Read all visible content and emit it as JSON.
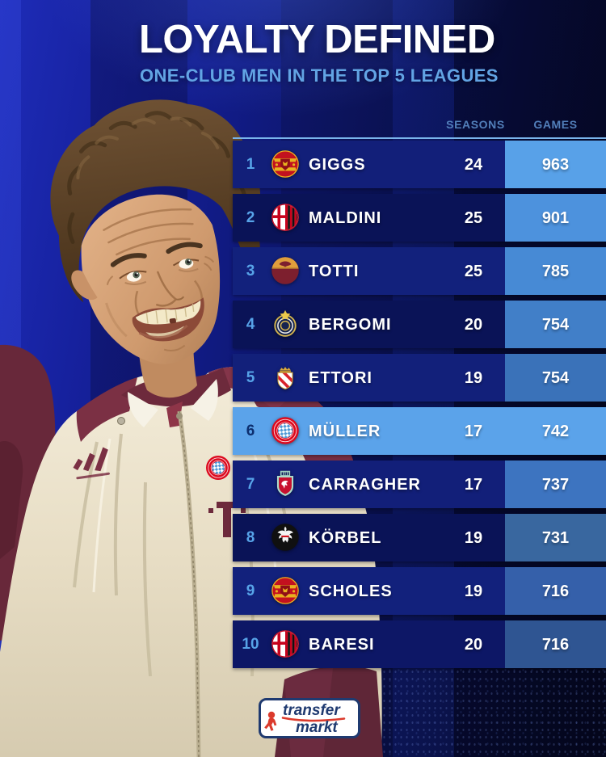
{
  "header": {
    "title": "LOYALTY DEFINED",
    "subtitle": "ONE-CLUB MEN IN THE TOP 5 LEAGUES"
  },
  "table": {
    "columns": [
      "SEASONS",
      "GAMES"
    ],
    "rows": [
      {
        "rank": "1",
        "club": "manchester-united",
        "club_badge": "manchester-united-badge",
        "player": "GIGGS",
        "seasons": "24",
        "games": "963",
        "row_color": "#121f79",
        "games_color": "#58a1e8",
        "highlight": false
      },
      {
        "rank": "2",
        "club": "ac-milan",
        "club_badge": "ac-milan-badge",
        "player": "MALDINI",
        "seasons": "25",
        "games": "901",
        "row_color": "#0a1357",
        "games_color": "#4d92dd",
        "highlight": false
      },
      {
        "rank": "3",
        "club": "as-roma",
        "club_badge": "as-roma-badge",
        "player": "TOTTI",
        "seasons": "25",
        "games": "785",
        "row_color": "#12217c",
        "games_color": "#478ad5",
        "highlight": false
      },
      {
        "rank": "4",
        "club": "inter-milan",
        "club_badge": "inter-milan-badge",
        "player": "BERGOMI",
        "seasons": "20",
        "games": "754",
        "row_color": "#0a1357",
        "games_color": "#417fc8",
        "highlight": false
      },
      {
        "rank": "5",
        "club": "as-monaco",
        "club_badge": "as-monaco-badge",
        "player": "ETTORI",
        "seasons": "19",
        "games": "754",
        "row_color": "#12207a",
        "games_color": "#3a72b9",
        "highlight": false
      },
      {
        "rank": "6",
        "club": "bayern-munich",
        "club_badge": "bayern-munich-badge",
        "player": "MÜLLER",
        "seasons": "17",
        "games": "742",
        "row_color": "#5ba3ea",
        "games_color": "#5ba3ea",
        "highlight": true
      },
      {
        "rank": "7",
        "club": "liverpool",
        "club_badge": "liverpool-badge",
        "player": "CARRAGHER",
        "seasons": "17",
        "games": "737",
        "row_color": "#121f79",
        "games_color": "#3d74c0",
        "highlight": false
      },
      {
        "rank": "8",
        "club": "eintracht-frankfurt",
        "club_badge": "eintracht-frankfurt-badge",
        "player": "KÖRBEL",
        "seasons": "19",
        "games": "731",
        "row_color": "#0a1357",
        "games_color": "#39679f",
        "highlight": false
      },
      {
        "rank": "9",
        "club": "manchester-united",
        "club_badge": "manchester-united-badge",
        "player": "SCHOLES",
        "seasons": "19",
        "games": "716",
        "row_color": "#12217c",
        "games_color": "#3560aa",
        "highlight": false
      },
      {
        "rank": "10",
        "club": "ac-milan",
        "club_badge": "ac-milan-badge",
        "player": "BARESI",
        "seasons": "20",
        "games": "716",
        "row_color": "#0d1766",
        "games_color": "#2f5592",
        "highlight": false
      }
    ]
  },
  "footer": {
    "brand_line1": "transfer",
    "brand_line2": "markt"
  },
  "colors": {
    "highlight_row": "#5ba3ea",
    "highlight_rank_text": "#0d2f6f",
    "rank_text": "#57a3e8",
    "header_text": "#527fba",
    "table_top_border": "#7ab5ec",
    "title_text": "#ffffff",
    "subtitle_text": "#62a4e4",
    "brand_red": "#db3a2c",
    "brand_navy": "#1f3a70"
  }
}
